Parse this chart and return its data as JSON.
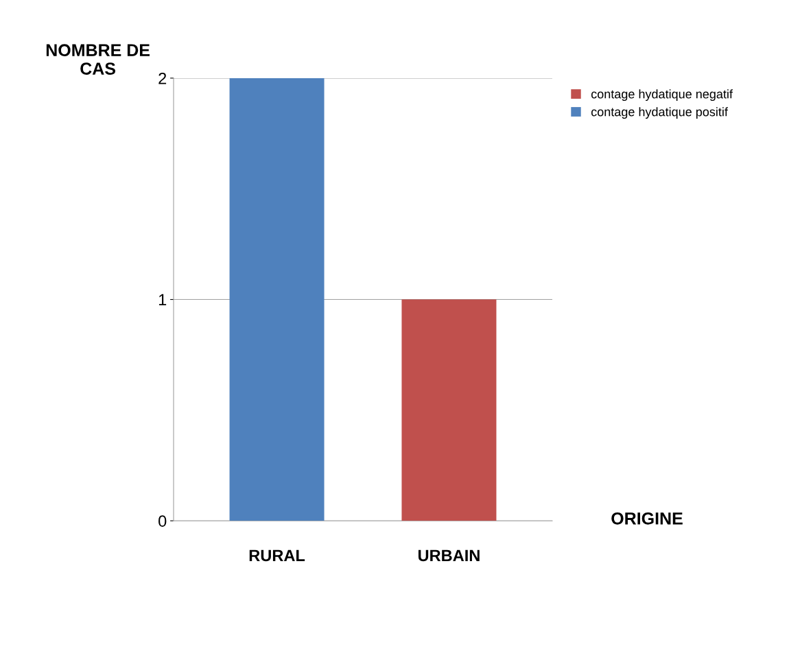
{
  "chart_data": {
    "type": "bar",
    "xlabel": "ORIGINE",
    "ylabel": "NOMBRE DE\nCAS",
    "categories": [
      "RURAL",
      "URBAIN"
    ],
    "series": [
      {
        "name": "contage hydatique negatif",
        "color": "#c0504d",
        "values": [
          0,
          1
        ]
      },
      {
        "name": "contage hydatique positif",
        "color": "#4f81bd",
        "values": [
          2,
          0
        ]
      }
    ],
    "ylim": [
      0,
      2
    ],
    "yticks": [
      0,
      1,
      2
    ],
    "grid": "y",
    "legend": "right"
  }
}
